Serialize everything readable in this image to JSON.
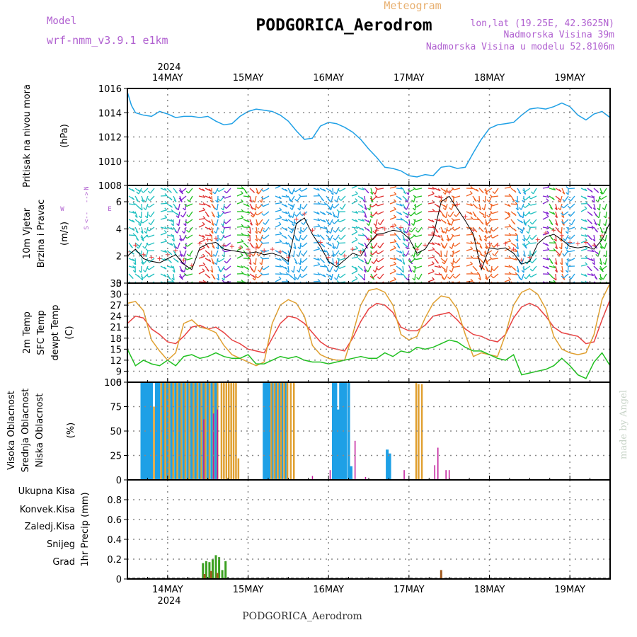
{
  "header": {
    "model_label": "Model",
    "model_name": "wrf-nmm_v3.9.1 e1km",
    "subtitle": "Meteogram",
    "station": "PODGORICA_Aerodrom",
    "lonlat": "lon,lat (19.25E, 42.3625N)",
    "altitude": "Nadmorska Visina 39m",
    "model_altitude": "Nadmorska Visina u modelu 52.8106m",
    "footer_station": "PODGORICA_Aerodrom",
    "credit": "made by Angel"
  },
  "colors": {
    "pressure": "#1ea0e6",
    "temp2m": "#e84040",
    "sfc": "#e0a030",
    "dewpt": "#20c020",
    "high_cloud": "#1ea0e6",
    "mid_cloud": "#e0a030",
    "low_cloud": "#c0189a",
    "total_precip": "#20c020",
    "conv_precip": "#e84040",
    "frozen_precip": "#f08020",
    "snow": "#4040d0",
    "hail": "#20c0c0"
  },
  "time_axis": {
    "year": "2024",
    "days": [
      "14MAY",
      "15MAY",
      "16MAY",
      "17MAY",
      "18MAY",
      "19MAY"
    ]
  },
  "chart_data": [
    {
      "type": "line",
      "ylabel_left": "Pritisak na nivou mora",
      "unit": "(hPa)",
      "ylim": [
        1008,
        1016
      ],
      "yticks": [
        "1008",
        "1010",
        "1012",
        "1014",
        "1016"
      ],
      "x_days": [
        13.5,
        13.55,
        13.6,
        13.7,
        13.8,
        13.9,
        14.0,
        14.1,
        14.2,
        14.3,
        14.4,
        14.5,
        14.6,
        14.7,
        14.8,
        14.9,
        15.0,
        15.1,
        15.2,
        15.3,
        15.4,
        15.5,
        15.6,
        15.7,
        15.8,
        15.9,
        16.0,
        16.1,
        16.2,
        16.3,
        16.4,
        16.5,
        16.6,
        16.7,
        16.8,
        16.9,
        17.0,
        17.1,
        17.2,
        17.3,
        17.4,
        17.5,
        17.6,
        17.7,
        17.8,
        17.9,
        18.0,
        18.1,
        18.2,
        18.3,
        18.4,
        18.5,
        18.6,
        18.7,
        18.8,
        18.9,
        19.0,
        19.1,
        19.2,
        19.3,
        19.4,
        19.5
      ],
      "series": [
        {
          "values": [
            1015.7,
            1014.6,
            1014.0,
            1013.8,
            1013.7,
            1014.1,
            1013.9,
            1013.6,
            1013.7,
            1013.7,
            1013.6,
            1013.7,
            1013.3,
            1013.0,
            1013.1,
            1013.7,
            1014.1,
            1014.3,
            1014.2,
            1014.1,
            1013.8,
            1013.3,
            1012.5,
            1011.8,
            1011.9,
            1012.9,
            1013.2,
            1013.1,
            1012.8,
            1012.4,
            1011.8,
            1011.0,
            1010.3,
            1009.5,
            1009.4,
            1009.2,
            1008.8,
            1008.7,
            1008.9,
            1008.8,
            1009.5,
            1009.6,
            1009.4,
            1009.5,
            1010.7,
            1011.8,
            1012.7,
            1013.0,
            1013.1,
            1013.2,
            1013.8,
            1014.3,
            1014.4,
            1014.3,
            1014.5,
            1014.8,
            1014.5,
            1013.8,
            1013.4,
            1013.9,
            1014.1,
            1013.6
          ]
        }
      ]
    },
    {
      "type": "line",
      "ylabel_left": [
        "10m Vjetar",
        "Brzina i Pravac"
      ],
      "unit": "(m/s)",
      "compass": [
        "N",
        "W",
        "E",
        "S",
        "<--",
        "-->"
      ],
      "ylim": [
        0,
        7.2
      ],
      "yticks": [
        "0",
        "2",
        "4",
        "6"
      ],
      "x_days": [
        13.5,
        13.6,
        13.7,
        13.8,
        13.9,
        14.0,
        14.1,
        14.2,
        14.3,
        14.4,
        14.5,
        14.6,
        14.7,
        14.8,
        14.9,
        15.0,
        15.1,
        15.2,
        15.3,
        15.4,
        15.5,
        15.6,
        15.7,
        15.8,
        15.9,
        16.0,
        16.1,
        16.2,
        16.3,
        16.4,
        16.5,
        16.6,
        16.7,
        16.8,
        16.9,
        17.0,
        17.1,
        17.2,
        17.3,
        17.4,
        17.5,
        17.6,
        17.7,
        17.8,
        17.9,
        18.0,
        18.1,
        18.2,
        18.3,
        18.4,
        18.5,
        18.6,
        18.7,
        18.8,
        18.9,
        19.0,
        19.1,
        19.2,
        19.3,
        19.4,
        19.5
      ],
      "series": [
        {
          "name": "10m wind",
          "values": [
            2.0,
            2.5,
            1.8,
            1.6,
            1.5,
            1.8,
            2.1,
            1.4,
            1.0,
            2.6,
            2.9,
            3.0,
            2.5,
            2.4,
            2.3,
            2.2,
            2.3,
            2.1,
            2.2,
            2.0,
            1.6,
            4.4,
            4.8,
            3.6,
            2.7,
            1.6,
            1.2,
            1.7,
            2.2,
            2.0,
            2.9,
            3.6,
            3.7,
            3.9,
            3.8,
            3.3,
            2.2,
            2.5,
            3.4,
            6.0,
            6.4,
            5.5,
            4.6,
            3.6,
            1.0,
            2.6,
            2.5,
            2.6,
            2.2,
            1.4,
            1.6,
            2.9,
            3.4,
            3.6,
            3.2,
            2.7,
            2.6,
            2.7,
            2.5,
            3.2,
            4.5
          ]
        }
      ]
    },
    {
      "type": "line",
      "ylabel_left": [
        "2m Temp",
        "SFC Temp",
        "dewpt Temp"
      ],
      "unit": "(C)",
      "ylim": [
        6,
        33
      ],
      "yticks": [
        "6",
        "9",
        "12",
        "15",
        "18",
        "21",
        "24",
        "27",
        "30",
        "33"
      ],
      "x_days": [
        13.5,
        13.6,
        13.7,
        13.8,
        13.9,
        14.0,
        14.1,
        14.2,
        14.3,
        14.4,
        14.5,
        14.6,
        14.7,
        14.8,
        14.9,
        15.0,
        15.1,
        15.2,
        15.3,
        15.4,
        15.5,
        15.6,
        15.7,
        15.8,
        15.9,
        16.0,
        16.1,
        16.2,
        16.3,
        16.4,
        16.5,
        16.6,
        16.7,
        16.8,
        16.9,
        17.0,
        17.1,
        17.2,
        17.3,
        17.4,
        17.5,
        17.6,
        17.7,
        17.8,
        17.9,
        18.0,
        18.1,
        18.2,
        18.3,
        18.4,
        18.5,
        18.6,
        18.7,
        18.8,
        18.9,
        19.0,
        19.1,
        19.2,
        19.3,
        19.4,
        19.5
      ],
      "series": [
        {
          "name": "2m Temp",
          "values": [
            22.0,
            24.0,
            23.5,
            20.5,
            19.0,
            17.0,
            16.5,
            18.5,
            21.0,
            21.5,
            20.5,
            21.0,
            19.5,
            17.5,
            16.5,
            15.0,
            14.5,
            14.0,
            18.0,
            22.0,
            24.0,
            23.5,
            22.0,
            19.5,
            17.0,
            15.5,
            15.0,
            14.5,
            18.0,
            22.5,
            26.0,
            27.5,
            27.0,
            25.0,
            21.0,
            20.0,
            20.0,
            21.5,
            24.0,
            24.5,
            25.0,
            23.0,
            20.5,
            19.0,
            18.5,
            17.5,
            17.0,
            19.0,
            23.5,
            26.5,
            27.5,
            26.5,
            24.0,
            21.0,
            19.5,
            19.0,
            18.5,
            16.5,
            17.0,
            23.0,
            28.5
          ]
        },
        {
          "name": "SFC Temp",
          "values": [
            27.5,
            28.0,
            25.5,
            17.5,
            14.5,
            12.0,
            14.0,
            22.0,
            23.0,
            21.0,
            20.5,
            19.5,
            16.0,
            13.5,
            12.5,
            11.5,
            10.5,
            11.5,
            22.0,
            27.0,
            28.5,
            27.5,
            24.0,
            16.0,
            13.5,
            12.5,
            12.0,
            12.0,
            19.0,
            27.0,
            31.0,
            31.5,
            30.5,
            27.0,
            19.0,
            17.5,
            18.5,
            23.5,
            27.5,
            29.5,
            29.0,
            26.0,
            19.0,
            13.0,
            14.0,
            13.5,
            13.0,
            19.0,
            27.0,
            30.5,
            31.5,
            30.0,
            26.0,
            18.5,
            15.0,
            14.0,
            13.5,
            14.0,
            19.0,
            28.5,
            33.0
          ]
        },
        {
          "name": "dewpt Temp",
          "values": [
            15.0,
            10.5,
            12.0,
            11.0,
            10.5,
            12.0,
            10.5,
            13.0,
            13.5,
            12.5,
            13.0,
            14.0,
            13.0,
            12.5,
            12.5,
            13.5,
            11.0,
            11.0,
            12.0,
            13.0,
            12.5,
            13.0,
            12.0,
            11.5,
            11.5,
            11.0,
            11.5,
            12.0,
            12.5,
            13.0,
            12.5,
            12.5,
            14.0,
            13.0,
            14.5,
            14.0,
            15.5,
            15.0,
            15.5,
            16.5,
            17.5,
            17.0,
            15.5,
            14.5,
            14.5,
            13.5,
            12.5,
            12.0,
            13.5,
            8.0,
            8.5,
            9.0,
            9.5,
            10.5,
            12.5,
            10.5,
            8.0,
            7.0,
            11.5,
            14.0,
            10.5
          ]
        }
      ]
    },
    {
      "type": "bar",
      "ylabel_left": [
        "Visoka Oblacnost",
        "Srednja Oblacnost",
        "Niska Oblacnost"
      ],
      "unit": "(%)",
      "ylim": [
        0,
        100
      ],
      "yticks": [
        "0",
        "25",
        "50",
        "75",
        "100"
      ],
      "series": [
        {
          "name": "Visoka Oblacnost",
          "x_days": [
            13.68,
            13.71,
            13.74,
            13.77,
            13.8,
            13.86,
            13.89,
            13.95,
            14.0,
            14.05,
            14.1,
            14.15,
            14.2,
            14.25,
            14.3,
            14.35,
            14.4,
            14.45,
            14.5,
            14.55,
            14.6,
            15.2,
            15.23,
            15.26,
            15.3,
            15.34,
            15.38,
            15.42,
            15.46,
            16.06,
            16.09,
            16.12,
            16.15,
            16.18,
            16.21,
            16.25,
            16.28,
            16.73,
            16.76
          ],
          "values": [
            100,
            100,
            100,
            100,
            100,
            100,
            100,
            100,
            100,
            100,
            100,
            100,
            100,
            100,
            100,
            100,
            100,
            100,
            100,
            100,
            100,
            100,
            100,
            100,
            100,
            100,
            100,
            100,
            100,
            100,
            100,
            72,
            100,
            100,
            100,
            100,
            14,
            31,
            27
          ]
        },
        {
          "name": "Srednja Oblacnost",
          "x_days": [
            13.83,
            13.92,
            13.97,
            14.02,
            14.07,
            14.12,
            14.17,
            14.22,
            14.27,
            14.32,
            14.37,
            14.42,
            14.47,
            14.52,
            14.57,
            14.62,
            14.67,
            14.7,
            14.73,
            14.76,
            14.79,
            14.82,
            14.85,
            14.88,
            15.29,
            15.33,
            15.37,
            15.41,
            15.45,
            15.49,
            15.53,
            15.57,
            17.09,
            17.12,
            17.16
          ],
          "values": [
            75,
            100,
            100,
            100,
            100,
            100,
            100,
            100,
            100,
            100,
            100,
            100,
            100,
            100,
            100,
            100,
            100,
            100,
            100,
            100,
            100,
            100,
            100,
            22,
            100,
            100,
            100,
            100,
            100,
            100,
            100,
            100,
            100,
            98,
            98
          ]
        },
        {
          "name": "Niska Oblacnost",
          "x_days": [
            14.45,
            14.57,
            14.62,
            15.8,
            16.02,
            16.33,
            16.46,
            16.94,
            17.32,
            17.36,
            17.46,
            17.5
          ],
          "values": [
            62,
            68,
            72,
            4,
            10,
            40,
            3,
            10,
            15,
            33,
            10,
            10
          ]
        }
      ]
    },
    {
      "type": "bar",
      "ylabel_left": [
        "Ukupna Kisa",
        "Konvek.Kisa",
        "Zaledj.Kisa",
        "Snijeg",
        "Grad"
      ],
      "unit": "1hr Precip (mm)",
      "ylim": [
        0,
        1.0
      ],
      "yticks": [
        "0",
        "0.2",
        "0.4",
        "0.6",
        "0.8"
      ],
      "series": [
        {
          "name": "Ukupna Kisa",
          "x_days": [
            14.44,
            14.48,
            14.52,
            14.56,
            14.6,
            14.64,
            14.68,
            14.72
          ],
          "values": [
            0.16,
            0.18,
            0.17,
            0.2,
            0.24,
            0.22,
            0.09,
            0.18
          ]
        },
        {
          "name": "Konvek.Kisa",
          "x_days": [
            14.46,
            14.54,
            14.62,
            17.4
          ],
          "values": [
            0.05,
            0.08,
            0.06,
            0.09
          ]
        }
      ]
    }
  ]
}
